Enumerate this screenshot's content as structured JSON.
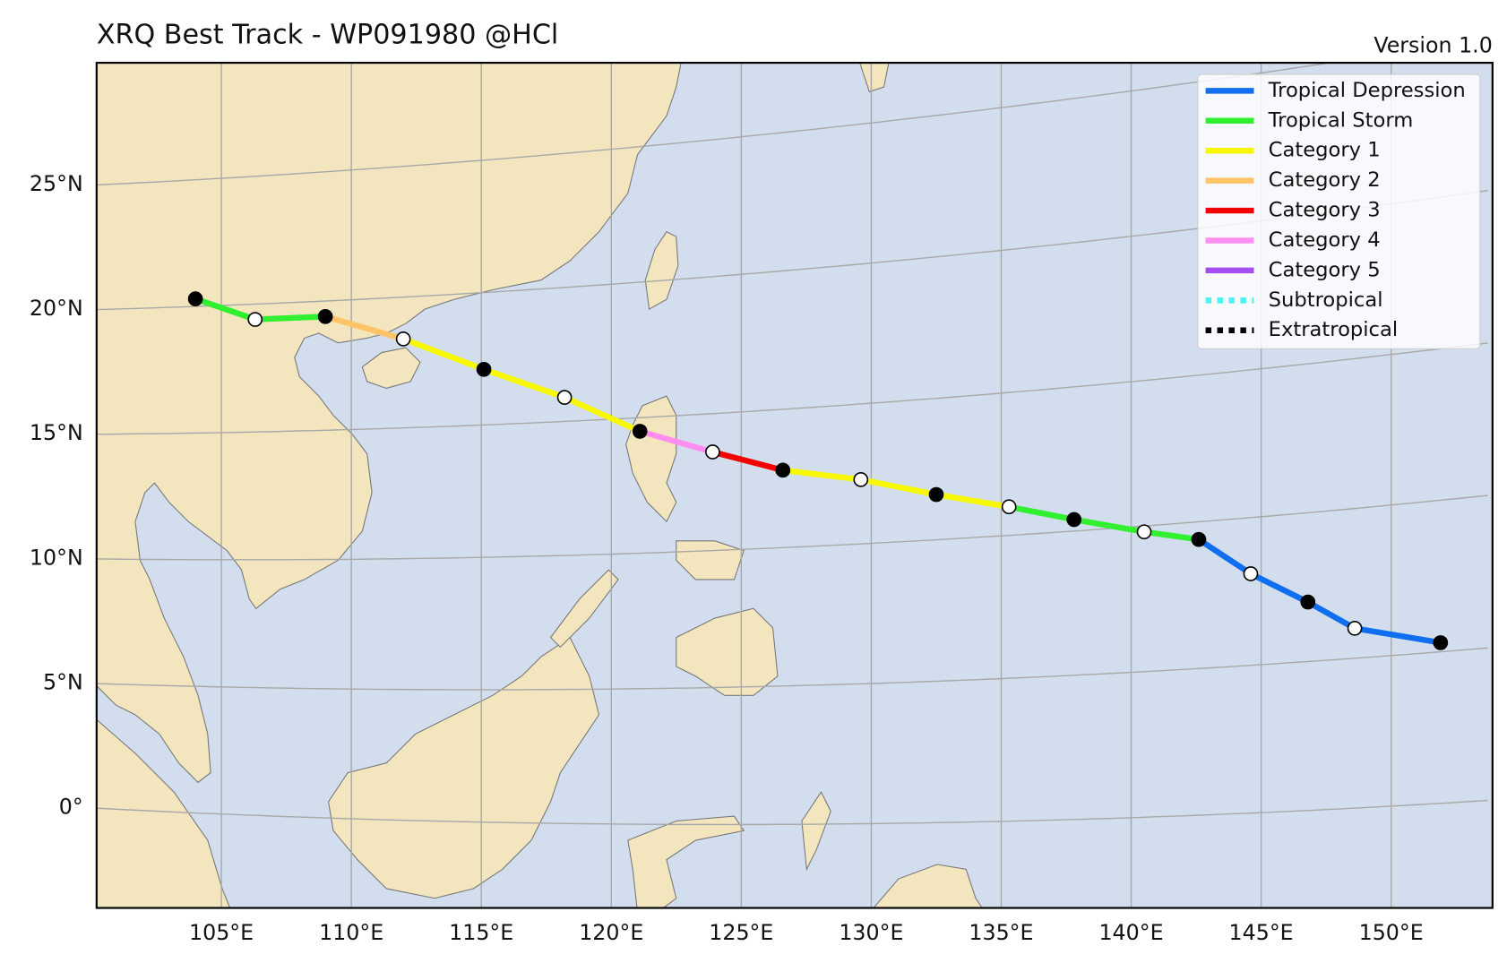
{
  "chart_data": {
    "type": "track-map",
    "title": "XRQ Best Track - WP091980  @HCl",
    "subtitle": "Version 1.0",
    "xlim": [
      100.2,
      153.9
    ],
    "ylim": [
      -4.0,
      29.9
    ],
    "xticks": [
      {
        "value": 105,
        "label": "105°E"
      },
      {
        "value": 110,
        "label": "110°E"
      },
      {
        "value": 115,
        "label": "115°E"
      },
      {
        "value": 120,
        "label": "120°E"
      },
      {
        "value": 125,
        "label": "125°E"
      },
      {
        "value": 130,
        "label": "130°E"
      },
      {
        "value": 135,
        "label": "135°E"
      },
      {
        "value": 140,
        "label": "140°E"
      },
      {
        "value": 145,
        "label": "145°E"
      },
      {
        "value": 150,
        "label": "150°E"
      }
    ],
    "yticks": [
      {
        "value": 0,
        "label": "0°"
      },
      {
        "value": 5,
        "label": "5°N"
      },
      {
        "value": 10,
        "label": "10°N"
      },
      {
        "value": 15,
        "label": "15°N"
      },
      {
        "value": 20,
        "label": "20°N"
      },
      {
        "value": 25,
        "label": "25°N"
      }
    ],
    "grid": true,
    "legend_loc": "upper right",
    "series": [
      {
        "name": "Tropical Depression",
        "color": "#0f6ff0",
        "style": "solid"
      },
      {
        "name": "Tropical Storm",
        "color": "#30f030",
        "style": "solid"
      },
      {
        "name": "Category 1",
        "color": "#f8f800",
        "style": "solid"
      },
      {
        "name": "Category 2",
        "color": "#ffc468",
        "style": "solid"
      },
      {
        "name": "Category 3",
        "color": "#f40000",
        "style": "solid"
      },
      {
        "name": "Category 4",
        "color": "#ff8ef0",
        "style": "solid"
      },
      {
        "name": "Category 5",
        "color": "#a64ff0",
        "style": "solid"
      },
      {
        "name": "Subtropical",
        "color": "#48f4f4",
        "style": "dotted"
      },
      {
        "name": "Extratropical",
        "color": "#000000",
        "style": "dotted"
      }
    ],
    "track": {
      "lon": [
        151.9,
        148.6,
        146.8,
        144.6,
        142.6,
        140.5,
        137.8,
        135.3,
        132.5,
        129.6,
        126.6,
        123.9,
        121.1,
        118.2,
        115.1,
        112.0,
        109.0,
        106.3,
        104.0
      ],
      "lat": [
        5.3,
        6.0,
        7.0,
        8.1,
        9.4,
        9.8,
        10.4,
        11.0,
        11.6,
        12.3,
        12.8,
        13.6,
        14.5,
        15.9,
        17.1,
        18.4,
        19.4,
        19.4,
        20.3
      ],
      "category": [
        "Tropical Depression",
        "Tropical Depression",
        "Tropical Depression",
        "Tropical Depression",
        "Tropical Storm",
        "Tropical Storm",
        "Tropical Storm",
        "Category 1",
        "Category 1",
        "Category 1",
        "Category 3",
        "Category 4",
        "Category 1",
        "Category 1",
        "Category 1",
        "Category 2",
        "Tropical Storm",
        "Tropical Storm",
        "Tropical Depression"
      ],
      "marker": [
        "filled",
        "open",
        "filled",
        "open",
        "filled",
        "open",
        "filled",
        "open",
        "filled",
        "open",
        "filled",
        "open",
        "filled",
        "open",
        "filled",
        "open",
        "filled",
        "open",
        "filled"
      ]
    }
  }
}
